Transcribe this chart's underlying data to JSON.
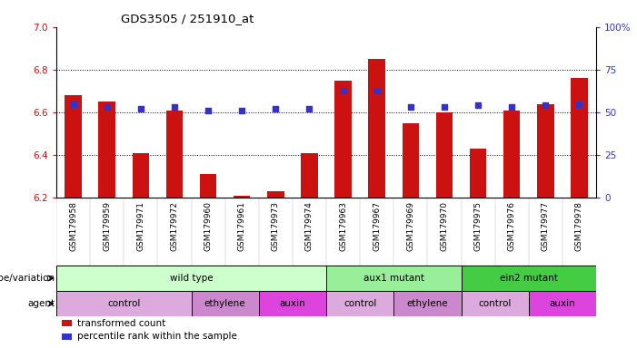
{
  "title": "GDS3505 / 251910_at",
  "samples": [
    "GSM179958",
    "GSM179959",
    "GSM179971",
    "GSM179972",
    "GSM179960",
    "GSM179961",
    "GSM179973",
    "GSM179974",
    "GSM179963",
    "GSM179967",
    "GSM179969",
    "GSM179970",
    "GSM179975",
    "GSM179976",
    "GSM179977",
    "GSM179978"
  ],
  "bar_values": [
    6.68,
    6.65,
    6.41,
    6.61,
    6.31,
    6.21,
    6.23,
    6.41,
    6.75,
    6.85,
    6.55,
    6.6,
    6.43,
    6.61,
    6.64,
    6.76
  ],
  "percentile_values": [
    55,
    53,
    52,
    53,
    51,
    51,
    52,
    52,
    63,
    63,
    53,
    53,
    54,
    53,
    54,
    55
  ],
  "ylim_left": [
    6.2,
    7.0
  ],
  "ylim_right": [
    0,
    100
  ],
  "yticks_left": [
    6.2,
    6.4,
    6.6,
    6.8,
    7.0
  ],
  "yticks_right": [
    0,
    25,
    50,
    75,
    100
  ],
  "bar_color": "#cc1111",
  "dot_color": "#3333cc",
  "bg_color": "#ffffff",
  "genotype_groups": [
    {
      "label": "wild type",
      "start": 0,
      "end": 8,
      "color": "#ccffcc"
    },
    {
      "label": "aux1 mutant",
      "start": 8,
      "end": 12,
      "color": "#99ee99"
    },
    {
      "label": "ein2 mutant",
      "start": 12,
      "end": 16,
      "color": "#44cc44"
    }
  ],
  "agent_groups": [
    {
      "label": "control",
      "start": 0,
      "end": 4,
      "color": "#ddaadd"
    },
    {
      "label": "ethylene",
      "start": 4,
      "end": 6,
      "color": "#cc88cc"
    },
    {
      "label": "auxin",
      "start": 6,
      "end": 8,
      "color": "#dd44dd"
    },
    {
      "label": "control",
      "start": 8,
      "end": 10,
      "color": "#ddaadd"
    },
    {
      "label": "ethylene",
      "start": 10,
      "end": 12,
      "color": "#cc88cc"
    },
    {
      "label": "control",
      "start": 12,
      "end": 14,
      "color": "#ddaadd"
    },
    {
      "label": "auxin",
      "start": 14,
      "end": 16,
      "color": "#dd44dd"
    }
  ],
  "legend_items": [
    {
      "label": "transformed count",
      "color": "#cc1111"
    },
    {
      "label": "percentile rank within the sample",
      "color": "#3333cc"
    }
  ],
  "left_axis_color": "#cc1111",
  "right_axis_color": "#3333cc",
  "grid_ticks": [
    6.4,
    6.6,
    6.8
  ],
  "row_labels": [
    "genotype/variation",
    "agent"
  ]
}
